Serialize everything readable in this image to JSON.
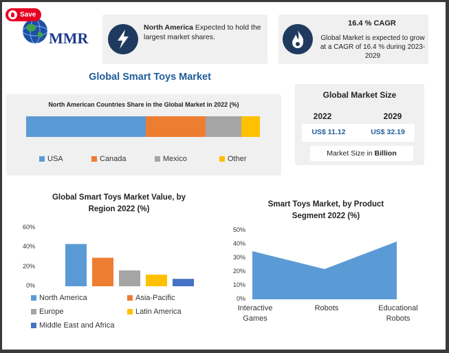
{
  "save_button": {
    "label": "Save"
  },
  "logo": {
    "text": "MMR"
  },
  "info_card_1": {
    "bold": "North America",
    "rest": " Expected to hold the largest market shares."
  },
  "info_card_2": {
    "title": "16.4 % CAGR",
    "body": "Global Market is expected to grow at a CAGR of 16.4 % during 2023-2029"
  },
  "main_title": "Global Smart Toys Market",
  "market_size": {
    "title": "Global Market Size",
    "year_a": "2022",
    "year_b": "2029",
    "value_a": "US$ 11.12",
    "value_b": "US$ 32.19",
    "unit_prefix": "Market Size in ",
    "unit_bold": "Billion"
  },
  "colors": {
    "usa": "#5b9bd5",
    "canada": "#ed7d31",
    "mexico": "#a5a5a5",
    "other": "#ffc000",
    "mea": "#4472c4",
    "area": "#5b9bd5",
    "navy": "#1e3a5f",
    "title_blue": "#1f5c99"
  },
  "icons": {
    "left_card": "lightning-bolt-icon",
    "right_card": "flame-icon",
    "logo": "globe-icon"
  },
  "chart_data": [
    {
      "type": "bar",
      "orientation": "horizontal-stacked",
      "title": "North American Countries Share in the Global Market in 2022 (%)",
      "categories": [
        "USA",
        "Canada",
        "Mexico",
        "Other"
      ],
      "values": [
        52,
        26,
        15.5,
        8
      ],
      "legend_placement": "bottom"
    },
    {
      "type": "bar",
      "title": "Global Smart Toys Market Value, by Region 2022 (%)",
      "categories": [
        "North America",
        "Asia-Pacific",
        "Europe",
        "Latin America",
        "Middle East and Africa"
      ],
      "values": [
        40,
        27,
        15,
        11,
        7
      ],
      "ylim": [
        0,
        60
      ],
      "yticks": [
        "0%",
        "20%",
        "40%",
        "60%"
      ],
      "legend_placement": "bottom"
    },
    {
      "type": "area",
      "title": "Smart Toys Market, by Product Segment 2022 (%)",
      "categories": [
        "Interactive Games",
        "Robots",
        "Educational Robots"
      ],
      "values": [
        35,
        22,
        42
      ],
      "ylim": [
        0,
        50
      ],
      "yticks": [
        "0%",
        "10%",
        "20%",
        "30%",
        "40%",
        "50%"
      ]
    }
  ]
}
